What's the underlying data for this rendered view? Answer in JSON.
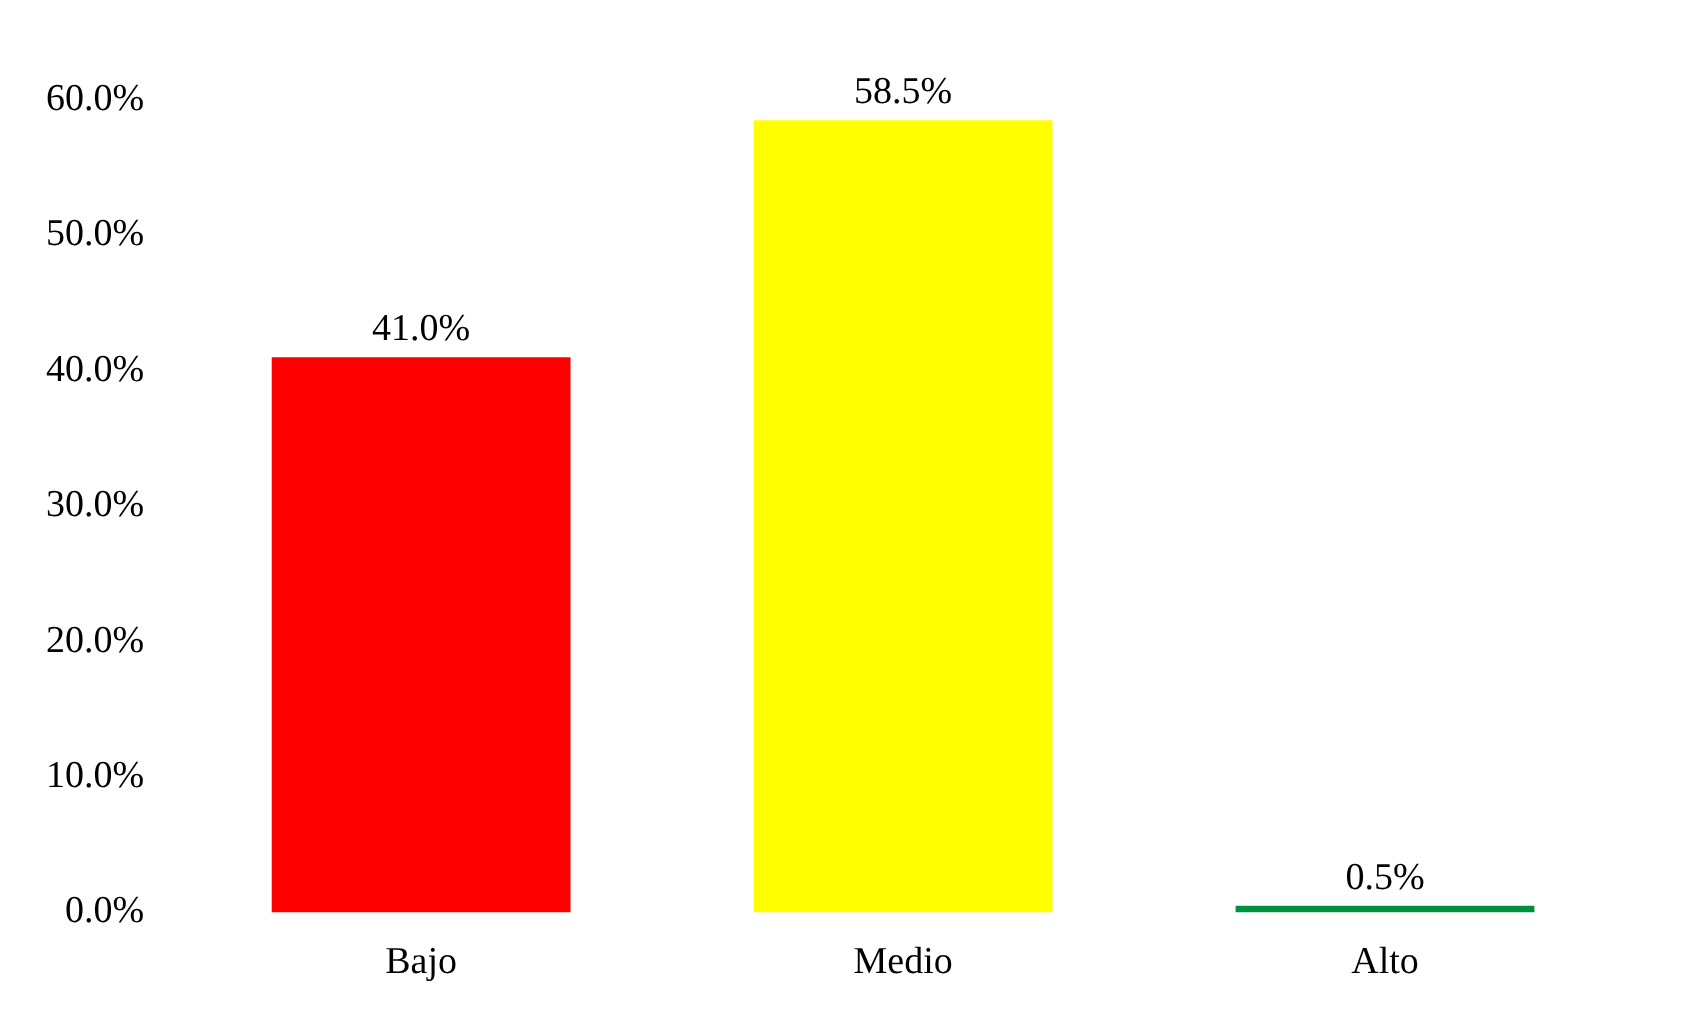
{
  "chart_data": {
    "type": "bar",
    "categories": [
      "Bajo",
      "Medio",
      "Alto"
    ],
    "values": [
      41.0,
      58.5,
      0.5
    ],
    "colors": [
      "#ff0000",
      "#ffff00",
      "#00913f"
    ],
    "value_labels": [
      "41.0%",
      "58.5%",
      "0.5%"
    ],
    "ylim": [
      0,
      60
    ],
    "yticks": [
      {
        "value": 0,
        "label": "0.0%"
      },
      {
        "value": 10,
        "label": "10.0%"
      },
      {
        "value": 20,
        "label": "20.0%"
      },
      {
        "value": 30,
        "label": "30.0%"
      },
      {
        "value": 40,
        "label": "40.0%"
      },
      {
        "value": 50,
        "label": "50.0%"
      },
      {
        "value": 60,
        "label": "60.0%"
      }
    ],
    "grid": false,
    "legend": false
  }
}
